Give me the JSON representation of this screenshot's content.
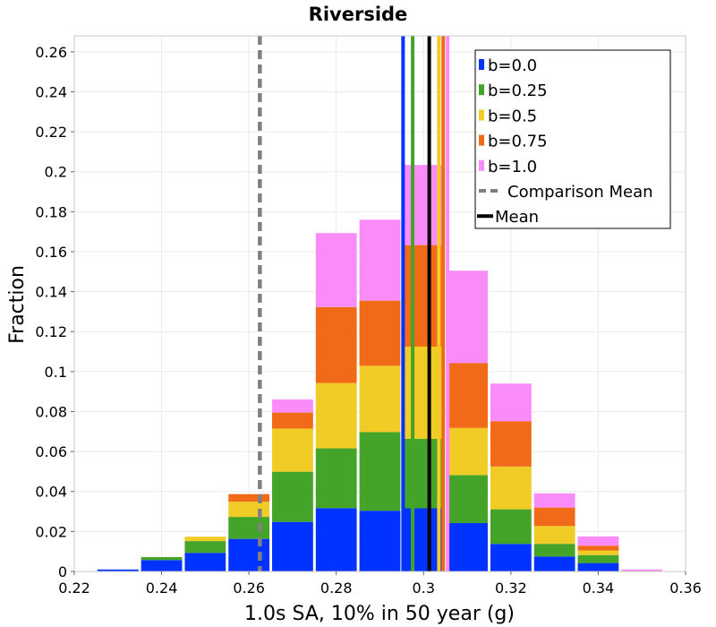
{
  "chart_data": {
    "type": "bar",
    "stacked": true,
    "title": "Riverside",
    "xlabel": "1.0s SA, 10% in 50 year (g)",
    "ylabel": "Fraction",
    "xlim": [
      0.22,
      0.36
    ],
    "ylim": [
      0,
      0.268
    ],
    "xticks": [
      "0.22",
      "0.24",
      "0.26",
      "0.28",
      "0.3",
      "0.32",
      "0.34",
      "0.36"
    ],
    "yticks": [
      "0",
      "0.02",
      "0.04",
      "0.06",
      "0.08",
      "0.1",
      "0.12",
      "0.14",
      "0.16",
      "0.18",
      "0.2",
      "0.22",
      "0.24",
      "0.26"
    ],
    "grid": true,
    "legend_position": "top-right",
    "bin_width": 0.01,
    "bins": [
      0.23,
      0.24,
      0.25,
      0.26,
      0.27,
      0.28,
      0.29,
      0.3,
      0.31,
      0.32,
      0.33,
      0.34,
      0.35
    ],
    "series": [
      {
        "name": "b=0.0",
        "color": "#0033ff",
        "values": [
          0.001,
          0.0057,
          0.0093,
          0.0163,
          0.0248,
          0.0317,
          0.0304,
          0.0316,
          0.0242,
          0.0138,
          0.0075,
          0.0042,
          0.0
        ]
      },
      {
        "name": "b=0.25",
        "color": "#44a329",
        "values": [
          0.0,
          0.0015,
          0.0059,
          0.011,
          0.0251,
          0.0299,
          0.0393,
          0.0348,
          0.024,
          0.0173,
          0.0063,
          0.004,
          0.0
        ]
      },
      {
        "name": "b=0.5",
        "color": "#f2cc26",
        "values": [
          0.0,
          0.0,
          0.0022,
          0.0076,
          0.0216,
          0.0327,
          0.0332,
          0.0461,
          0.0236,
          0.0214,
          0.0089,
          0.0023,
          0.0
        ]
      },
      {
        "name": "b=0.75",
        "color": "#f06a17",
        "values": [
          0.0,
          0.0,
          0.0,
          0.0038,
          0.008,
          0.038,
          0.0326,
          0.0508,
          0.0325,
          0.0227,
          0.0093,
          0.0024,
          0.0
        ]
      },
      {
        "name": "b=1.0",
        "color": "#fa8cfa",
        "values": [
          0.0,
          0.0,
          0.0,
          0.0,
          0.0066,
          0.037,
          0.0405,
          0.0401,
          0.0462,
          0.0188,
          0.0071,
          0.0046,
          0.001
        ]
      }
    ],
    "mean_lines": [
      {
        "series": "b=0.0",
        "x": 0.2953,
        "color": "#0033ff"
      },
      {
        "series": "b=0.25",
        "x": 0.2975,
        "color": "#44a329"
      },
      {
        "series": "b=0.5",
        "x": 0.3035,
        "color": "#f2cc26"
      },
      {
        "series": "b=0.75",
        "x": 0.3045,
        "color": "#f06a17"
      },
      {
        "series": "b=1.0",
        "x": 0.3055,
        "color": "#fa8cfa"
      }
    ],
    "comparison_mean": {
      "name": "Comparison Mean",
      "x": 0.2625,
      "color": "#808080",
      "style": "dashed"
    },
    "overall_mean": {
      "name": "Mean",
      "x": 0.3013,
      "color": "#000000",
      "style": "solid"
    }
  }
}
